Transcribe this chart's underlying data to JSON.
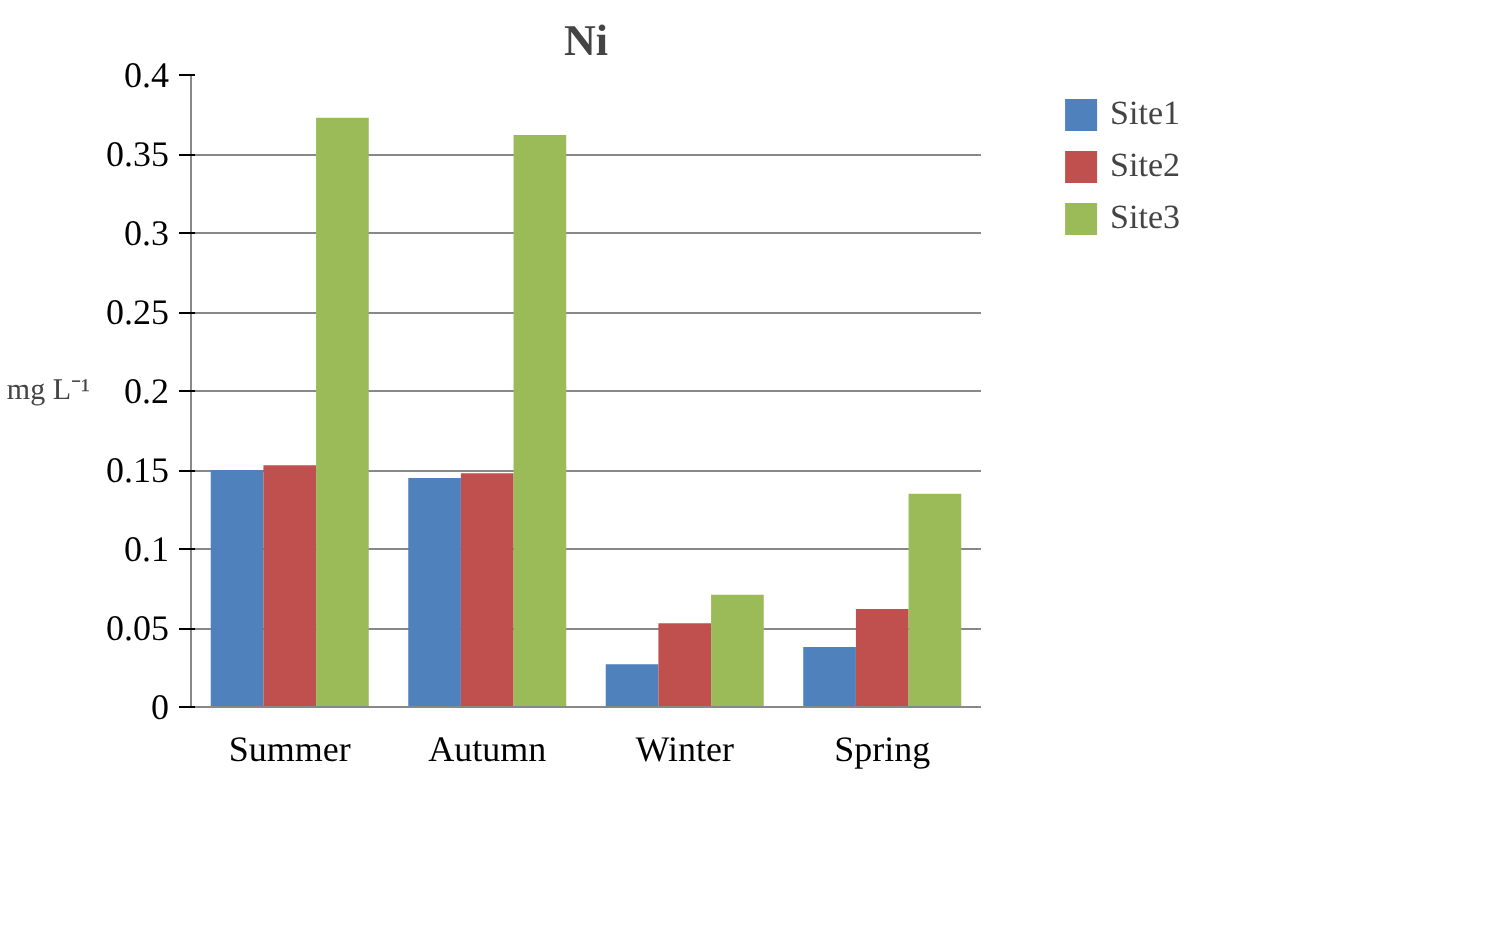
{
  "chart_data": {
    "type": "bar",
    "title": "Ni",
    "ylabel": "mg L⁻¹",
    "categories": [
      "Summer",
      "Autumn",
      "Winter",
      "Spring"
    ],
    "series": [
      {
        "name": "Site1",
        "color": "#4f81bd",
        "values": [
          0.15,
          0.145,
          0.027,
          0.038
        ]
      },
      {
        "name": "Site2",
        "color": "#c0504d",
        "values": [
          0.153,
          0.148,
          0.053,
          0.062
        ]
      },
      {
        "name": "Site3",
        "color": "#9bbb59",
        "values": [
          0.373,
          0.362,
          0.071,
          0.135
        ]
      }
    ],
    "ylim": [
      0,
      0.4
    ],
    "yticks": [
      0,
      0.05,
      0.1,
      0.15,
      0.2,
      0.25,
      0.3,
      0.35,
      0.4
    ],
    "grid": "y",
    "legend": "right"
  }
}
